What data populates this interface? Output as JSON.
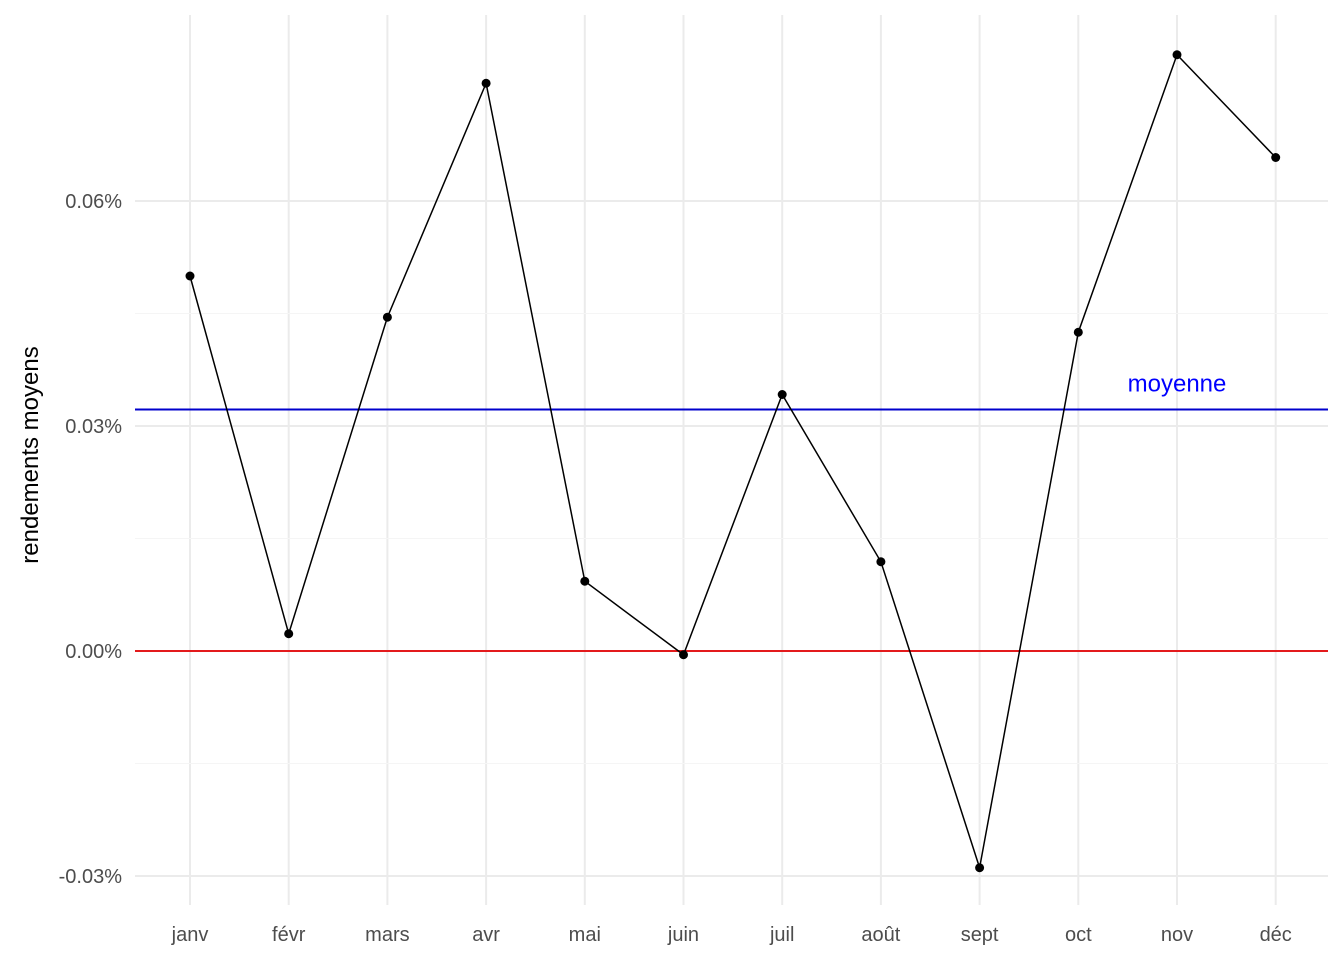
{
  "chart_data": {
    "type": "line",
    "title": "",
    "xlabel": "",
    "ylabel": "rendements moyens",
    "categories": [
      "janv",
      "févr",
      "mars",
      "avr",
      "mai",
      "juin",
      "juil",
      "août",
      "sept",
      "oct",
      "nov",
      "déc"
    ],
    "series": [
      {
        "values": [
          0.05,
          0.0023,
          0.0445,
          0.0757,
          0.0093,
          -0.0005,
          0.0342,
          0.0119,
          -0.0289,
          0.0425,
          0.0795,
          0.0658
        ]
      }
    ],
    "yticks": [
      -0.03,
      0.0,
      0.03,
      0.06
    ],
    "ytick_labels": [
      "-0.03%",
      "0.00%",
      "0.03%",
      "0.06%"
    ],
    "ylim": [
      -0.034,
      0.0855
    ],
    "grid": true,
    "reference_lines": [
      {
        "value": 0.0,
        "color": "#e31a1c"
      },
      {
        "value": 0.0322,
        "color": "#0000cc",
        "label": "moyenne",
        "label_category": "nov"
      }
    ],
    "colors": {
      "line": "#000000",
      "point": "#000000",
      "grid": "#ebebeb",
      "annotation": "#0000ff"
    }
  }
}
